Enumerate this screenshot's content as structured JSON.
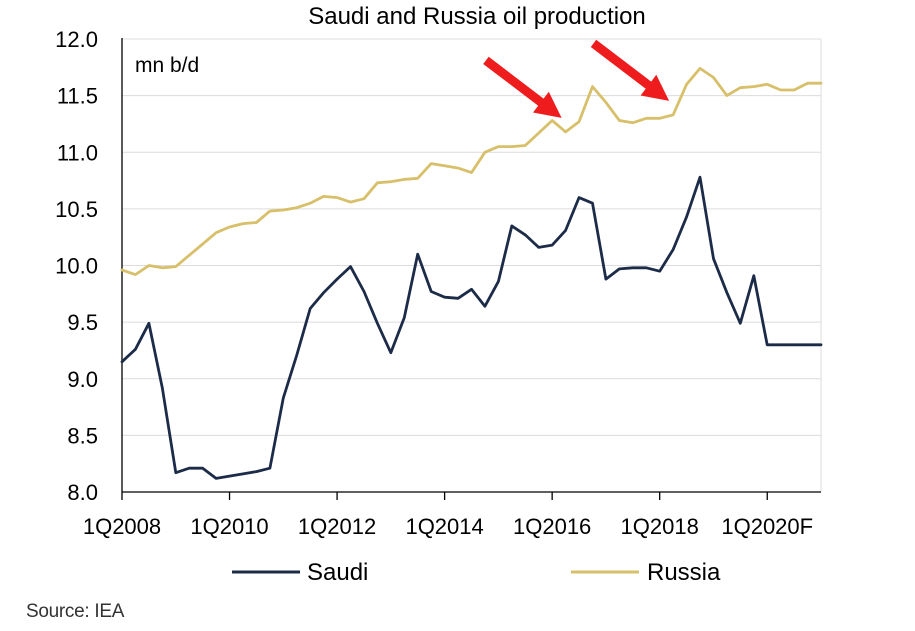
{
  "chart_data": {
    "type": "line",
    "title": "Saudi and Russia oil production",
    "unit_label": "mn b/d",
    "ylim": [
      8.0,
      12.0
    ],
    "yticks": [
      8.0,
      8.5,
      9.0,
      9.5,
      10.0,
      10.5,
      11.0,
      11.5,
      12.0
    ],
    "ytick_labels": [
      "8.0",
      "8.5",
      "9.0",
      "9.5",
      "10.0",
      "10.5",
      "11.0",
      "11.5",
      "12.0"
    ],
    "xtick_labels": [
      "1Q2008",
      "1Q2010",
      "1Q2012",
      "1Q2014",
      "1Q2016",
      "1Q2018",
      "1Q2020F"
    ],
    "xtick_index": [
      0,
      8,
      16,
      24,
      32,
      40,
      48
    ],
    "n_points": 53,
    "arrow_target_index": [
      33,
      41
    ],
    "series": [
      {
        "name": "Saudi",
        "color": "#1c2b47",
        "values": [
          9.15,
          9.26,
          9.49,
          8.92,
          8.17,
          8.21,
          8.21,
          8.12,
          8.14,
          8.16,
          8.18,
          8.21,
          8.83,
          9.21,
          9.62,
          9.76,
          9.88,
          9.99,
          9.77,
          9.49,
          9.23,
          9.54,
          10.1,
          9.77,
          9.72,
          9.71,
          9.79,
          9.64,
          9.86,
          10.35,
          10.27,
          10.16,
          10.18,
          10.31,
          10.6,
          10.55,
          9.88,
          9.97,
          9.98,
          9.98,
          9.95,
          10.14,
          10.43,
          10.78,
          10.06,
          9.76,
          9.49,
          9.91,
          9.3,
          9.3,
          9.3,
          9.3,
          9.3
        ]
      },
      {
        "name": "Russia",
        "color": "#d8bf6a",
        "values": [
          9.96,
          9.92,
          10.0,
          9.98,
          9.99,
          10.09,
          10.19,
          10.29,
          10.34,
          10.37,
          10.38,
          10.48,
          10.49,
          10.51,
          10.55,
          10.61,
          10.6,
          10.56,
          10.59,
          10.73,
          10.74,
          10.76,
          10.77,
          10.9,
          10.88,
          10.86,
          10.82,
          11.0,
          11.05,
          11.05,
          11.06,
          11.17,
          11.28,
          11.18,
          11.27,
          11.58,
          11.44,
          11.28,
          11.26,
          11.3,
          11.3,
          11.33,
          11.6,
          11.74,
          11.66,
          11.5,
          11.57,
          11.58,
          11.6,
          11.55,
          11.55,
          11.61,
          11.61
        ]
      }
    ],
    "legend_position": "bottom"
  },
  "source": "Source: IEA"
}
